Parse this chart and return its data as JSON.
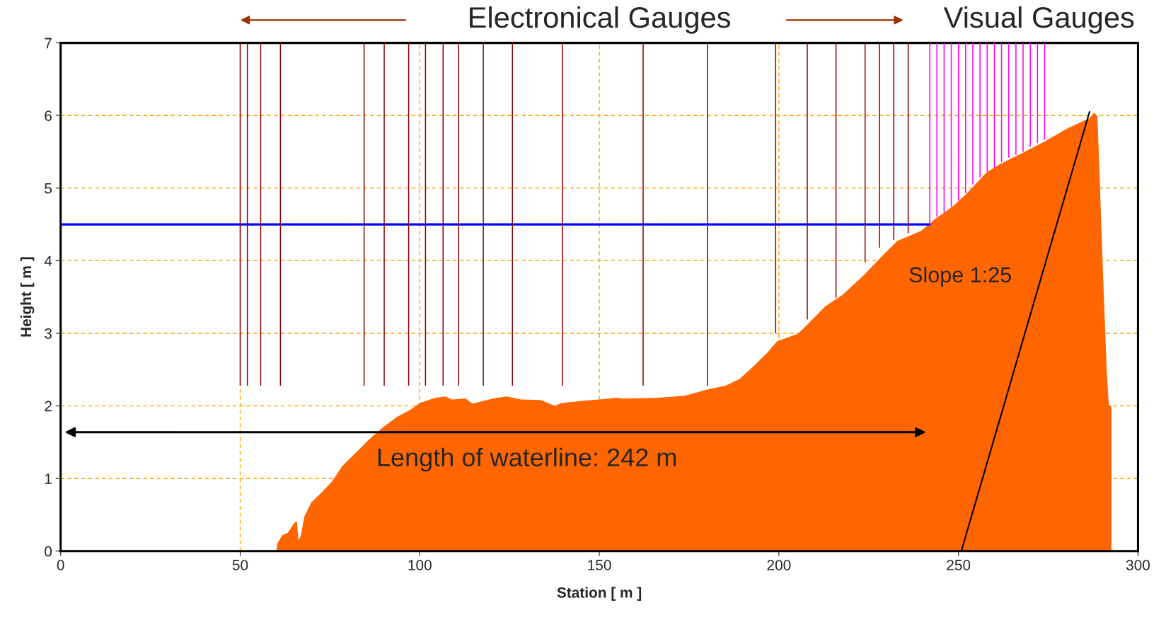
{
  "chart_data": {
    "type": "area",
    "xlabel": "Station [ m ]",
    "ylabel": "Height [ m ]",
    "xlim": [
      0,
      300
    ],
    "ylim": [
      0,
      7
    ],
    "xticks": [
      0,
      50,
      100,
      150,
      200,
      250,
      300
    ],
    "yticks": [
      0,
      1,
      2,
      3,
      4,
      5,
      6,
      7
    ],
    "grid": true,
    "annotations": [
      "Electronical Gauges",
      "Visual Gauges",
      "Length of waterline: 242 m",
      "Slope 1:25"
    ],
    "series": [
      {
        "color": "#ff6600",
        "x": [
          60.1,
          60.3,
          61.7,
          63.2,
          65.1,
          65.8,
          66.2,
          66.8,
          67.9,
          69.8,
          72.7,
          75.6,
          78.4,
          82.3,
          86.1,
          89.9,
          93.7,
          97.5,
          100,
          104.2,
          107.1,
          109.0,
          112.8,
          114.7,
          118.5,
          121.4,
          124.2,
          128.1,
          133.8,
          137.6,
          139.5,
          145.2,
          150.0,
          154.8,
          156.6,
          166.1,
          173.8,
          180.4,
          185.2,
          189.0,
          192.8,
          196.7,
          199.5,
          205.2,
          208.1,
          212.9,
          217.7,
          223.4,
          228.1,
          232.9,
          239.6,
          243.4,
          248.2,
          252.0,
          257.7,
          261.5,
          267.3,
          273.9,
          280.6,
          286.4,
          287.8,
          288.7,
          289.2,
          290.2,
          291.3,
          291.9,
          292.6,
          292.6
        ],
        "values": [
          0,
          0.1,
          0.22,
          0.25,
          0.39,
          0.41,
          0.15,
          0.2,
          0.48,
          0.67,
          0.81,
          0.96,
          1.17,
          1.36,
          1.55,
          1.71,
          1.85,
          1.95,
          2.04,
          2.11,
          2.13,
          2.09,
          2.1,
          2.03,
          2.08,
          2.11,
          2.13,
          2.09,
          2.08,
          2.0,
          2.04,
          2.07,
          2.09,
          2.11,
          2.1,
          2.11,
          2.14,
          2.23,
          2.28,
          2.37,
          2.54,
          2.73,
          2.89,
          2.99,
          3.13,
          3.37,
          3.53,
          3.79,
          4.03,
          4.27,
          4.41,
          4.57,
          4.74,
          4.91,
          5.21,
          5.33,
          5.47,
          5.64,
          5.83,
          5.96,
          6.04,
          5.99,
          5.31,
          3.89,
          2.47,
          2.0,
          2.0,
          0
        ]
      },
      {
        "type": "bar",
        "color": "#8b0000",
        "x": [
          50,
          52.0,
          55.7,
          61.2,
          84.5,
          90.1,
          96.9,
          101.6,
          106.5,
          110.8,
          117.7,
          125.8,
          139.7,
          162.2,
          180.1,
          199.1,
          207.9,
          215.9,
          224.0,
          228.0,
          232.0,
          236.0
        ],
        "base": [
          2.28,
          2.28,
          2.28,
          2.28,
          2.28,
          2.28,
          2.28,
          2.28,
          2.28,
          2.28,
          2.28,
          2.28,
          2.28,
          2.28,
          2.28,
          3.0,
          3.19,
          3.49,
          3.98,
          4.18,
          4.29,
          4.38
        ],
        "values": [
          4.72,
          4.72,
          4.72,
          4.72,
          4.72,
          4.72,
          4.72,
          4.72,
          4.72,
          4.72,
          4.72,
          4.72,
          4.72,
          4.72,
          4.72,
          4.0,
          3.81,
          3.51,
          3.02,
          2.82,
          2.71,
          2.62
        ]
      },
      {
        "type": "bar",
        "color": "#ff00ff",
        "x": [
          242,
          244,
          246,
          248,
          250,
          252,
          254,
          256,
          258,
          260,
          262,
          264,
          266,
          268,
          270,
          272,
          274
        ],
        "base": [
          4.5,
          4.6,
          4.66,
          4.74,
          4.83,
          4.93,
          5.05,
          5.15,
          5.22,
          5.28,
          5.36,
          5.42,
          5.46,
          5.5,
          5.57,
          5.62,
          5.66
        ],
        "values": [
          2.5,
          2.4,
          2.34,
          2.26,
          2.17,
          2.07,
          1.95,
          1.85,
          1.78,
          1.72,
          1.64,
          1.58,
          1.54,
          1.5,
          1.43,
          1.38,
          1.34
        ]
      },
      {
        "type": "line",
        "color": "#0000ff",
        "x": [
          0,
          242
        ],
        "values": [
          4.5,
          4.5
        ]
      },
      {
        "type": "line",
        "color": "#000000",
        "x": [
          250.8,
          286.5
        ],
        "values": [
          0,
          6.05
        ]
      }
    ]
  }
}
